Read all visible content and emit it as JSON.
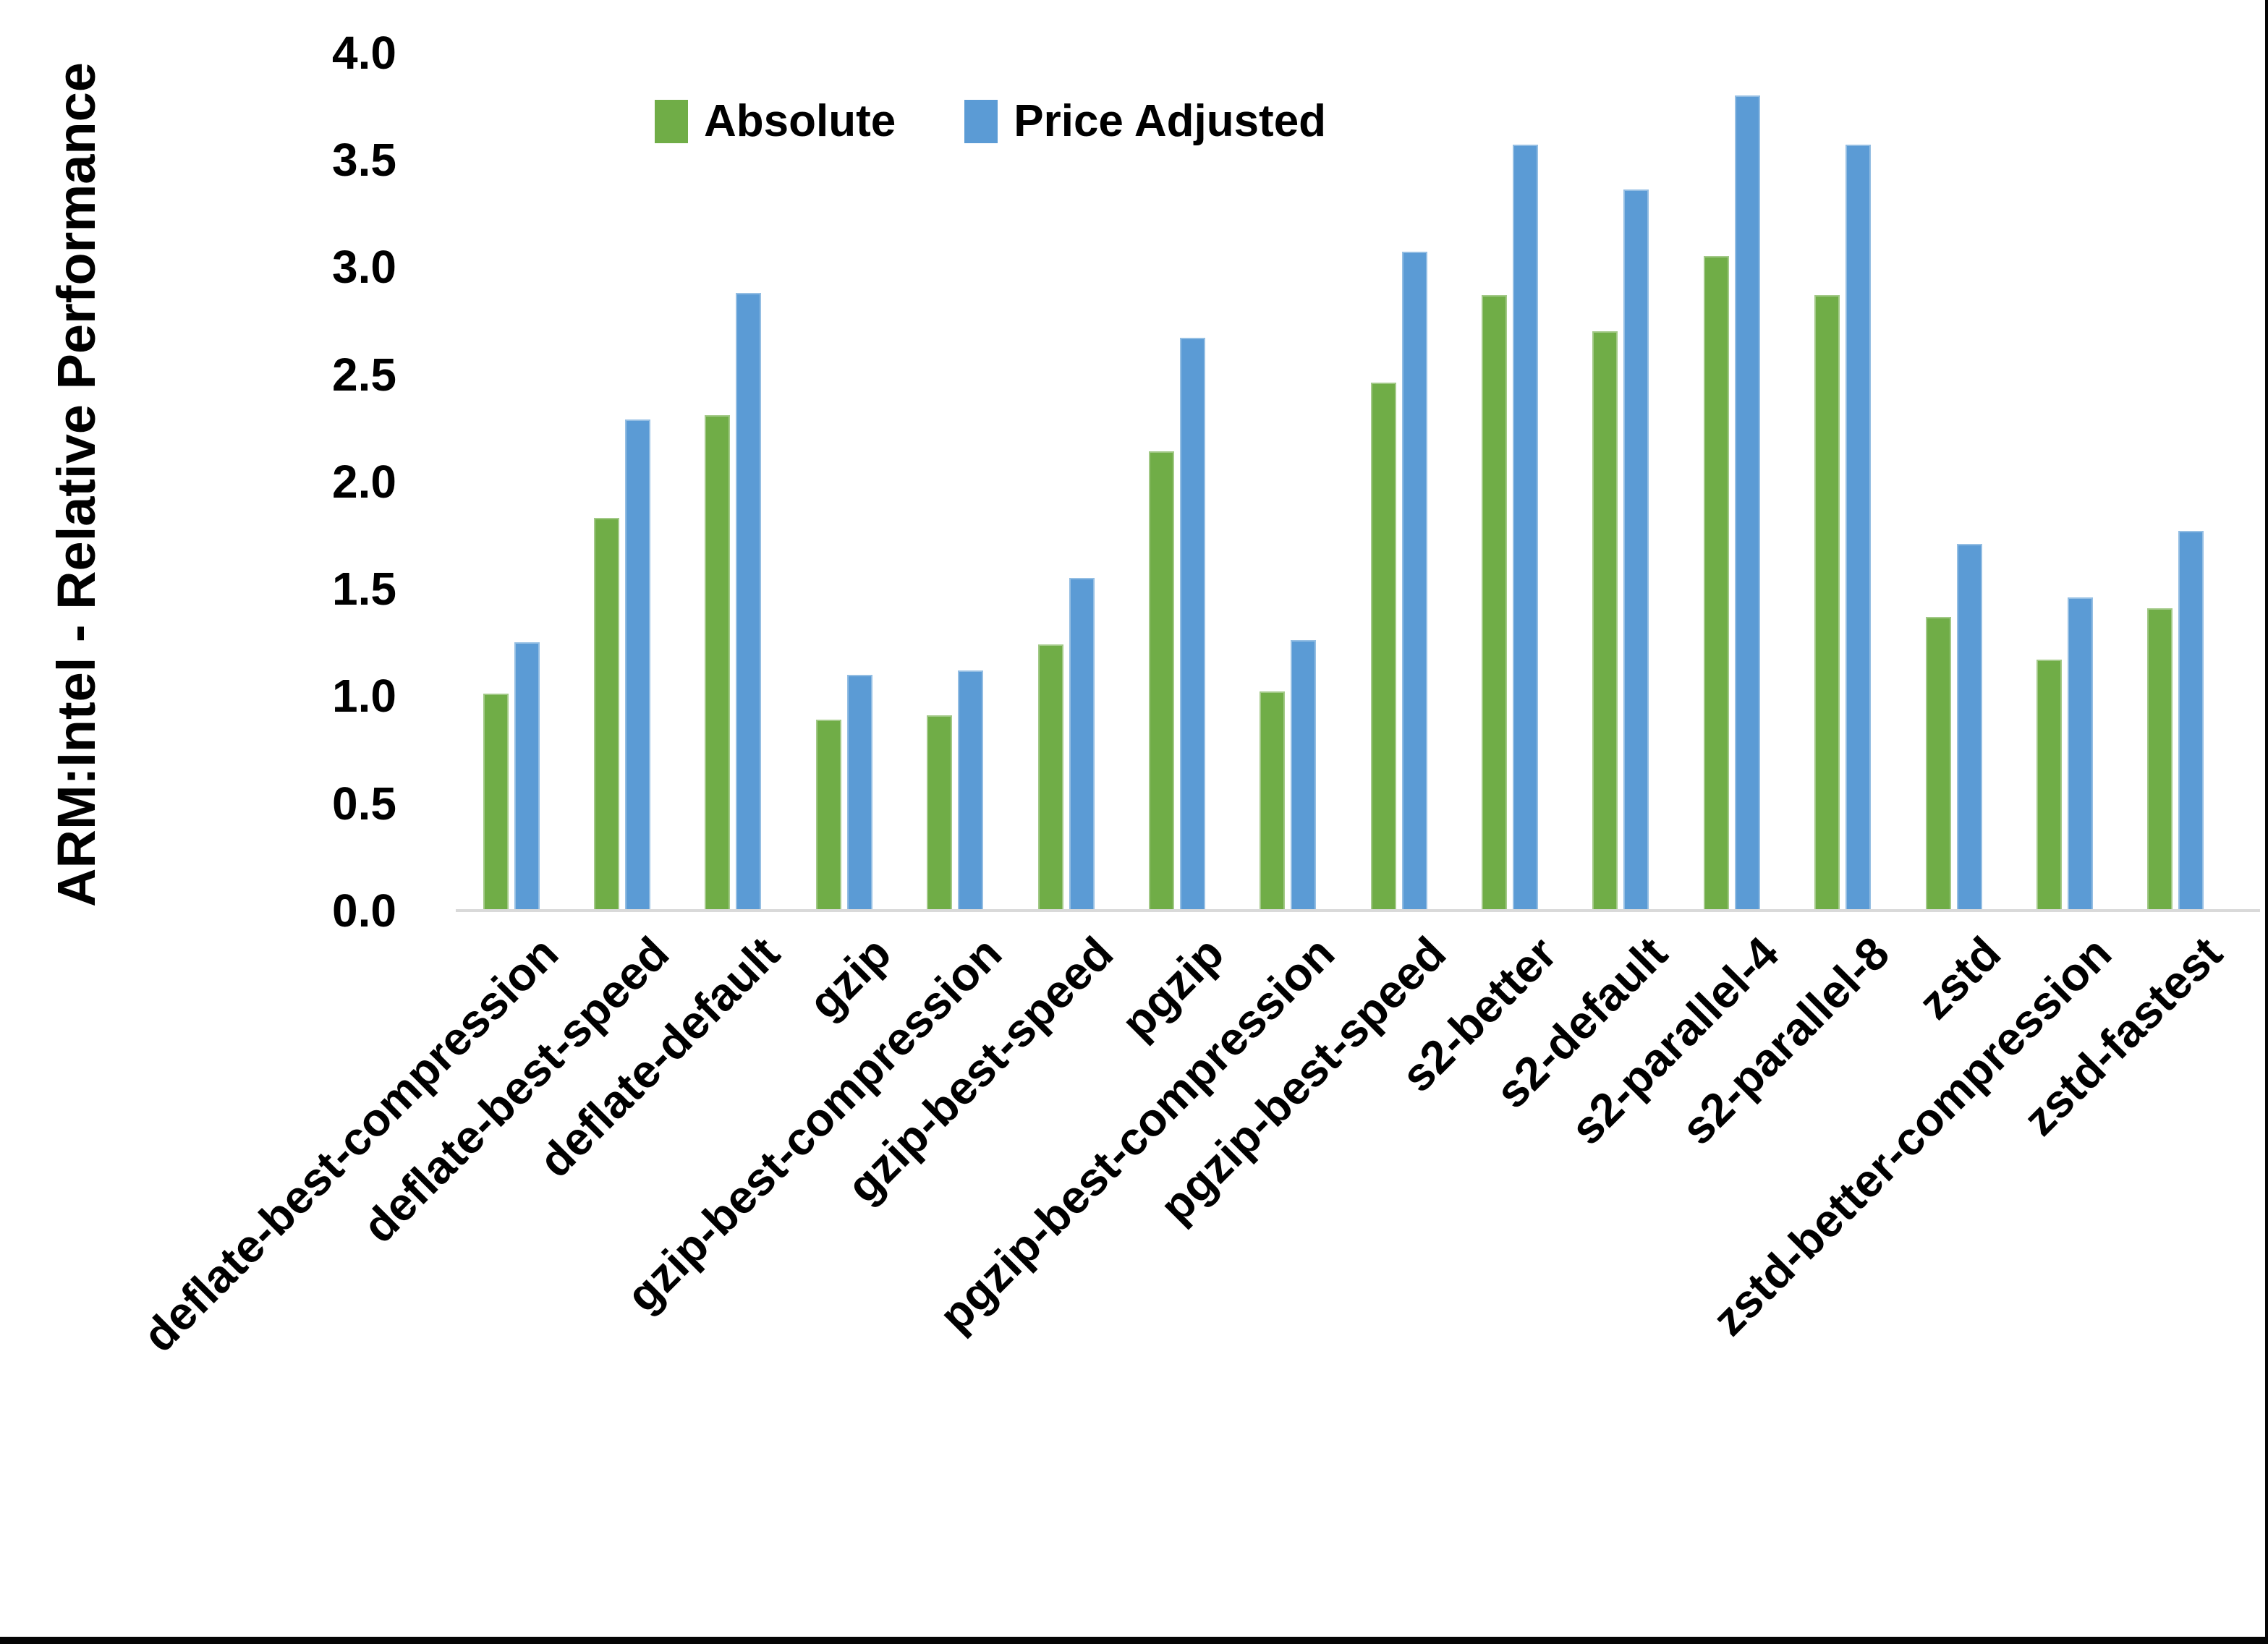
{
  "chart_data": {
    "type": "bar",
    "title": "",
    "xlabel": "",
    "ylabel": "ARM:Intel - Relative Performance",
    "ylim": [
      0.0,
      4.0
    ],
    "ytick_labels": [
      "0.0",
      "0.5",
      "1.0",
      "1.5",
      "2.0",
      "2.5",
      "3.0",
      "3.5",
      "4.0"
    ],
    "grid": false,
    "legend_position": "top",
    "background_color": "#ffffff",
    "axis_line_color": "#d9d9d9",
    "text_color": "#000000",
    "categories": [
      "deflate-best-compression",
      "deflate-best-speed",
      "deflate-default",
      "gzip",
      "gzip-best-compression",
      "gzip-best-speed",
      "pgzip",
      "pgzip-best-compression",
      "pgzip-best-speed",
      "s2-better",
      "s2-default",
      "s2-parallel-4",
      "s2-parallel-8",
      "zstd",
      "zstd-better-compression",
      "zstd-fastest"
    ],
    "series": [
      {
        "name": "Absolute",
        "color": "#70AD47",
        "values": [
          1.01,
          1.83,
          2.31,
          0.89,
          0.91,
          1.24,
          2.14,
          1.02,
          2.46,
          2.87,
          2.7,
          3.05,
          2.87,
          1.37,
          1.17,
          1.41
        ]
      },
      {
        "name": "Price Adjusted",
        "color": "#5B9BD5",
        "values": [
          1.25,
          2.29,
          2.88,
          1.1,
          1.12,
          1.55,
          2.67,
          1.26,
          3.07,
          3.57,
          3.36,
          3.8,
          3.57,
          1.71,
          1.46,
          1.77
        ]
      }
    ]
  },
  "frame": {
    "border_color": "#050505"
  }
}
